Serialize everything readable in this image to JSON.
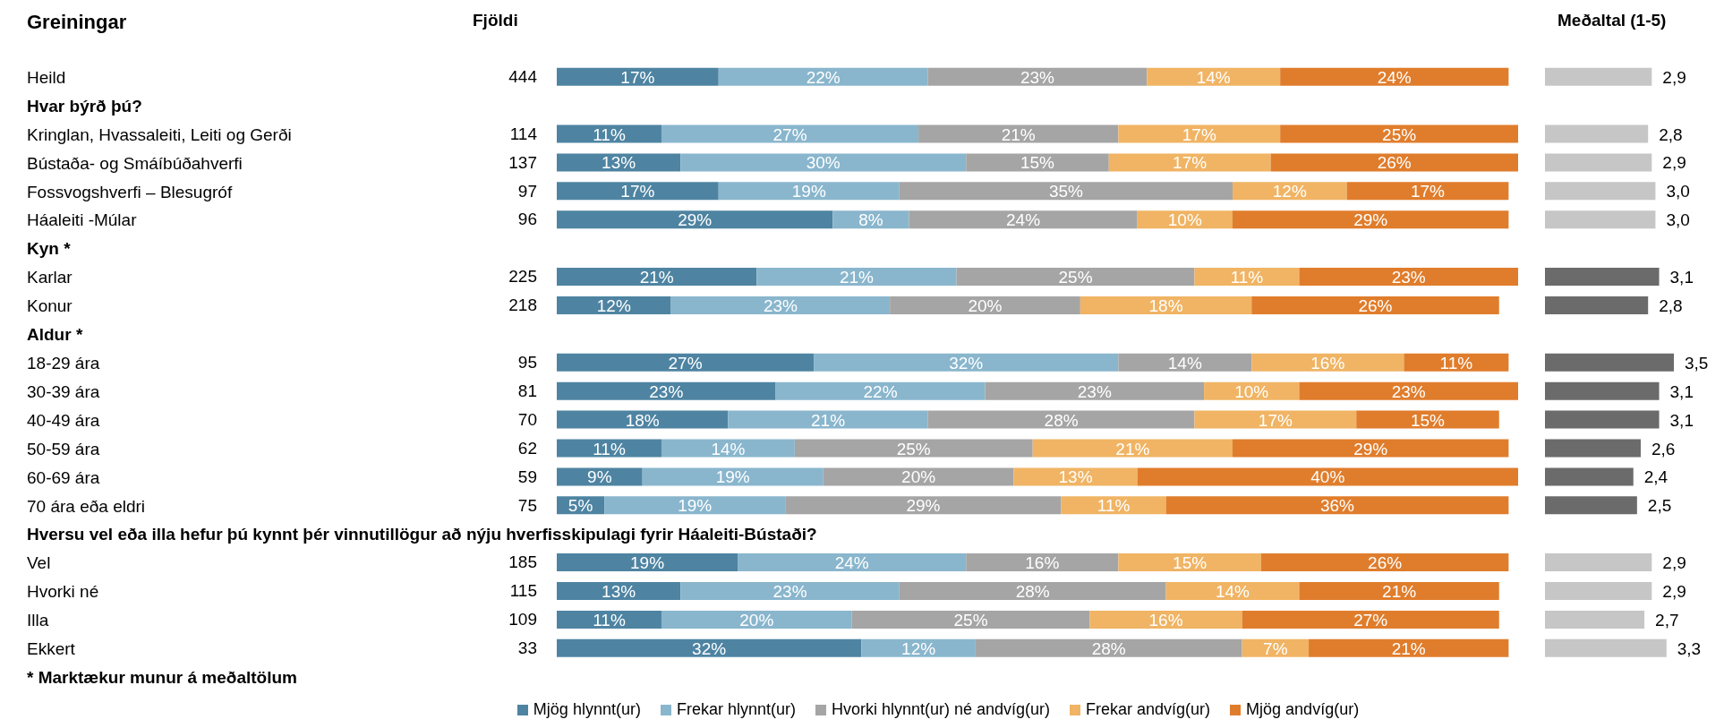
{
  "chart_data": [
    {
      "type": "bar",
      "title": "Greiningar",
      "orientation": "horizontal",
      "stacked": true,
      "xlim": [
        0,
        101
      ],
      "tick_labels": "y",
      "legend": "bottom",
      "categories": [
        "Heild",
        "Hvar býrð þú?",
        "Kringlan, Hvassaleiti, Leiti og Gerði",
        "Bústaða- og Smáíbúðahverfi",
        "Fossvogshverfi – Blesugróf",
        "Háaleiti -Múlar",
        "Kyn *",
        "Karlar",
        "Konur",
        "Aldur *",
        "18-29 ára",
        "30-39 ára",
        "40-49 ára",
        "50-59 ára",
        "60-69 ára",
        "70 ára eða eldri",
        "Hversu vel eða illa hefur þú kynnt þér vinnutillögur að nýju hverfisskipulagi fyrir Háaleiti-Bústaði?",
        "Vel",
        "Hvorki né",
        "Illa",
        "Ekkert"
      ],
      "series": [
        {
          "name": "Mjög hlynnt(ur)",
          "color": "#4e84a2",
          "values": [
            17,
            null,
            11,
            13,
            17,
            29,
            null,
            21,
            12,
            null,
            27,
            23,
            18,
            11,
            9,
            5,
            null,
            19,
            13,
            11,
            32
          ],
          "value_labels": [
            "17%",
            null,
            "11%",
            "13%",
            "17%",
            "29%",
            null,
            "21%",
            "12%",
            null,
            "27%",
            "23%",
            "18%",
            "11%",
            "9%",
            "5%",
            null,
            "19%",
            "13%",
            "11%",
            "32%"
          ]
        },
        {
          "name": "Frekar hlynnt(ur)",
          "color": "#89b6cd",
          "values": [
            22,
            null,
            27,
            30,
            19,
            8,
            null,
            21,
            23,
            null,
            32,
            22,
            21,
            14,
            19,
            19,
            null,
            24,
            23,
            20,
            12
          ],
          "value_labels": [
            "22%",
            null,
            "27%",
            "30%",
            "19%",
            "8%",
            null,
            "21%",
            "23%",
            null,
            "32%",
            "22%",
            "21%",
            "14%",
            "19%",
            "19%",
            null,
            "24%",
            "23%",
            "20%",
            "12%"
          ]
        },
        {
          "name": "Hvorki hlynnt(ur) né andvíg(ur)",
          "color": "#a5a5a5",
          "values": [
            23,
            null,
            21,
            15,
            35,
            24,
            null,
            25,
            20,
            null,
            14,
            23,
            28,
            25,
            20,
            29,
            null,
            16,
            28,
            25,
            28
          ],
          "value_labels": [
            "23%",
            null,
            "21%",
            "15%",
            "35%",
            "24%",
            null,
            "25%",
            "20%",
            null,
            "14%",
            "23%",
            "28%",
            "25%",
            "20%",
            "29%",
            null,
            "16%",
            "28%",
            "25%",
            "28%"
          ]
        },
        {
          "name": "Frekar andvíg(ur)",
          "color": "#f0b464",
          "values": [
            14,
            null,
            17,
            17,
            12,
            10,
            null,
            11,
            18,
            null,
            16,
            10,
            17,
            21,
            13,
            11,
            null,
            15,
            14,
            16,
            7
          ],
          "value_labels": [
            "14%",
            null,
            "17%",
            "17%",
            "12%",
            "10%",
            null,
            "11%",
            "18%",
            null,
            "16%",
            "10%",
            "17%",
            "21%",
            "13%",
            "11%",
            null,
            "15%",
            "14%",
            "16%",
            "7%"
          ]
        },
        {
          "name": "Mjög andvíg(ur)",
          "color": "#e07d2c",
          "values": [
            24,
            null,
            25,
            26,
            17,
            29,
            null,
            23,
            26,
            null,
            11,
            23,
            15,
            29,
            40,
            36,
            null,
            26,
            21,
            27,
            21
          ],
          "value_labels": [
            "24%",
            null,
            "25%",
            "26%",
            "17%",
            "29%",
            null,
            "23%",
            "26%",
            null,
            "11%",
            "23%",
            "15%",
            "29%",
            "40%",
            "36%",
            null,
            "26%",
            "21%",
            "27%",
            "21%"
          ]
        }
      ],
      "annotations": [
        "* Marktækur munur á meðaltölum"
      ]
    },
    {
      "type": "other",
      "title": "Fjöldi",
      "data_labels": true,
      "values": [
        444,
        null,
        114,
        137,
        97,
        96,
        null,
        225,
        218,
        null,
        95,
        81,
        70,
        62,
        59,
        75,
        null,
        185,
        115,
        109,
        33
      ]
    },
    {
      "type": "bar",
      "title": "Meðaltal (1-5)",
      "orientation": "horizontal",
      "tick_labels": false,
      "values": [
        2.9,
        null,
        2.8,
        2.9,
        3.0,
        3.0,
        null,
        3.1,
        2.8,
        null,
        3.5,
        3.1,
        3.1,
        2.6,
        2.4,
        2.5,
        null,
        2.9,
        2.9,
        2.7,
        3.3
      ],
      "value_labels": [
        "2,9",
        null,
        "2,8",
        "2,9",
        "3,0",
        "3,0",
        null,
        "3,1",
        "2,8",
        null,
        "3,5",
        "3,1",
        "3,1",
        "2,6",
        "2,4",
        "2,5",
        null,
        "2,9",
        "2,9",
        "2,7",
        "3,3"
      ],
      "colors": [
        "#c6c6c6",
        null,
        "#c6c6c6",
        "#c6c6c6",
        "#c6c6c6",
        "#c6c6c6",
        null,
        "#6b6b6b",
        "#6b6b6b",
        null,
        "#6b6b6b",
        "#6b6b6b",
        "#6b6b6b",
        "#6b6b6b",
        "#6b6b6b",
        "#6b6b6b",
        null,
        "#c6c6c6",
        "#c6c6c6",
        "#c6c6c6",
        "#c6c6c6"
      ]
    }
  ]
}
